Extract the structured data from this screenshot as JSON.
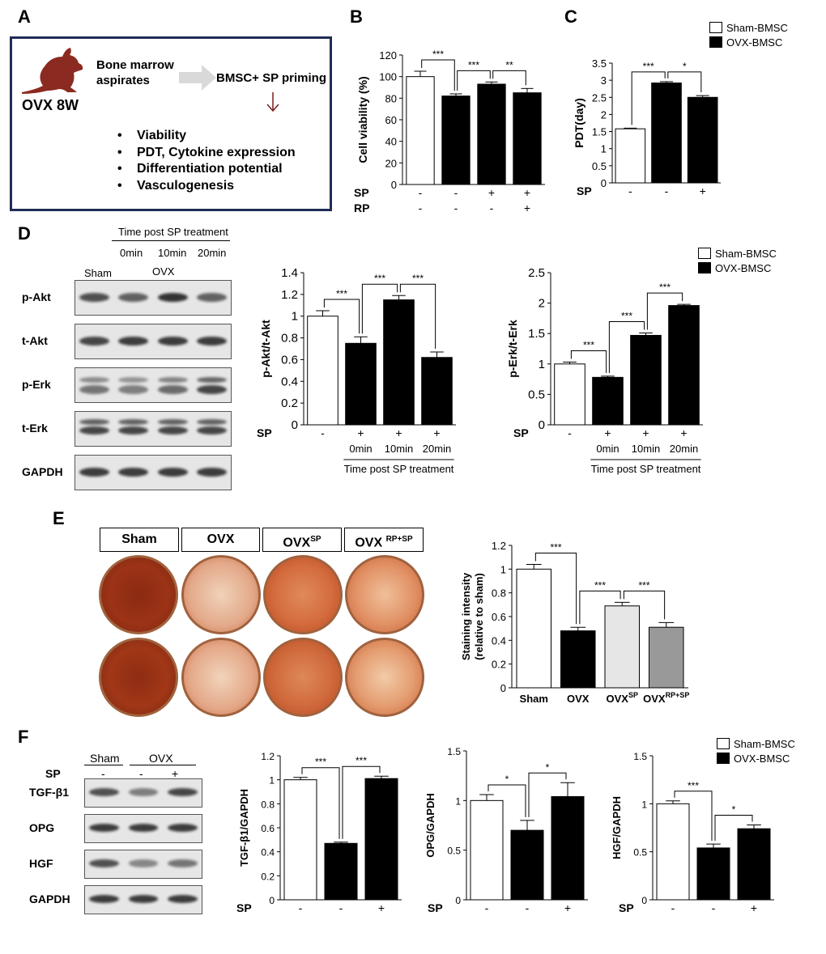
{
  "panels": {
    "A": {
      "label": "A",
      "model": "OVX 8W",
      "step1": "Bone marrow",
      "step1b": "aspirates",
      "step2": "BMSC+ SP priming",
      "bullets": [
        "Viability",
        "PDT, Cytokine expression",
        "Differentiation potential",
        "Vasculogenesis"
      ],
      "bullet_glyph": "•",
      "rat_color": "#8b2a20",
      "arrow_color": "#7a1f1f"
    },
    "B": {
      "label": "B"
    },
    "C": {
      "label": "C"
    },
    "D": {
      "label": "D",
      "blot_header": "Time post SP treatment",
      "times": [
        "0min",
        "10min",
        "20min"
      ],
      "groups": [
        "Sham",
        "OVX"
      ],
      "rows": [
        "p-Akt",
        "t-Akt",
        "p-Erk",
        "t-Erk",
        "GAPDH"
      ]
    },
    "E": {
      "label": "E",
      "conditions": [
        "Sham",
        "OVX",
        "OVX",
        "OVX"
      ],
      "cond_sup": [
        "",
        "",
        "SP",
        "RP+SP"
      ]
    },
    "F": {
      "label": "F",
      "groups": [
        "Sham",
        "OVX"
      ],
      "sp_row_label": "SP",
      "sp_values": [
        "-",
        "-",
        "+"
      ],
      "rows": [
        "TGF-β1",
        "OPG",
        "HGF",
        "GAPDH"
      ]
    }
  },
  "legend": {
    "items": [
      "Sham-BMSC",
      "OVX-BMSC"
    ],
    "colors": [
      "#ffffff",
      "#000000"
    ]
  },
  "chart_data": [
    {
      "id": "B",
      "type": "bar",
      "ylabel": "Cell viability (%)",
      "ylim": [
        0,
        120
      ],
      "yticks": [
        0,
        20,
        40,
        60,
        80,
        100,
        120
      ],
      "values": [
        100,
        82,
        93,
        85
      ],
      "errors": [
        5,
        2,
        2,
        4
      ],
      "colors": [
        "#ffffff",
        "#000000",
        "#000000",
        "#000000"
      ],
      "factor_rows": [
        {
          "name": "SP",
          "values": [
            "-",
            "-",
            "+",
            "+"
          ]
        },
        {
          "name": "RP",
          "values": [
            "-",
            "-",
            "-",
            "+"
          ]
        }
      ],
      "sig": [
        {
          "from": 0,
          "to": 1,
          "label": "***"
        },
        {
          "from": 1,
          "to": 2,
          "label": "***"
        },
        {
          "from": 2,
          "to": 3,
          "label": "**"
        }
      ]
    },
    {
      "id": "C",
      "type": "bar",
      "ylabel": "PDT(day)",
      "ylim": [
        0,
        3.5
      ],
      "yticks": [
        0,
        0.5,
        1,
        1.5,
        2,
        2.5,
        3,
        3.5
      ],
      "values": [
        1.58,
        2.92,
        2.5
      ],
      "errors": [
        0.02,
        0.04,
        0.05
      ],
      "colors": [
        "#ffffff",
        "#000000",
        "#000000"
      ],
      "factor_rows": [
        {
          "name": "SP",
          "values": [
            "-",
            "-",
            "+"
          ]
        }
      ],
      "sig": [
        {
          "from": 0,
          "to": 1,
          "label": "***"
        },
        {
          "from": 1,
          "to": 2,
          "label": "*"
        }
      ]
    },
    {
      "id": "D1",
      "type": "bar",
      "ylabel": "p-Akt/t-Akt",
      "ylim": [
        0,
        1.4
      ],
      "yticks": [
        0,
        0.2,
        0.4,
        0.6,
        0.8,
        1,
        1.2,
        1.4
      ],
      "values": [
        1.0,
        0.75,
        1.15,
        0.62
      ],
      "errors": [
        0.05,
        0.06,
        0.04,
        0.05
      ],
      "colors": [
        "#ffffff",
        "#000000",
        "#000000",
        "#000000"
      ],
      "factor_rows": [
        {
          "name": "SP",
          "values": [
            "-",
            "+",
            "+",
            "+"
          ]
        }
      ],
      "categories": [
        "",
        "0min",
        "10min",
        "20min"
      ],
      "xgroup_label": "Time post SP treatment",
      "sig": [
        {
          "from": 0,
          "to": 1,
          "label": "***"
        },
        {
          "from": 1,
          "to": 2,
          "label": "***"
        },
        {
          "from": 2,
          "to": 3,
          "label": "***"
        }
      ]
    },
    {
      "id": "D2",
      "type": "bar",
      "ylabel": "p-Erk/t-Erk",
      "ylim": [
        0,
        2.5
      ],
      "yticks": [
        0,
        0.5,
        1,
        1.5,
        2,
        2.5
      ],
      "values": [
        1.0,
        0.78,
        1.47,
        1.96
      ],
      "errors": [
        0.03,
        0.02,
        0.04,
        0.02
      ],
      "colors": [
        "#ffffff",
        "#000000",
        "#000000",
        "#000000"
      ],
      "factor_rows": [
        {
          "name": "SP",
          "values": [
            "-",
            "+",
            "+",
            "+"
          ]
        }
      ],
      "categories": [
        "",
        "0min",
        "10min",
        "20min"
      ],
      "xgroup_label": "Time post SP treatment",
      "sig": [
        {
          "from": 0,
          "to": 1,
          "label": "***"
        },
        {
          "from": 1,
          "to": 2,
          "label": "***"
        },
        {
          "from": 2,
          "to": 3,
          "label": "***"
        }
      ]
    },
    {
      "id": "E",
      "type": "bar",
      "ylabel": "Staining intensity",
      "ylabel2": "(relative to sham)",
      "ylim": [
        0,
        1.2
      ],
      "yticks": [
        0,
        0.2,
        0.4,
        0.6,
        0.8,
        1,
        1.2
      ],
      "values": [
        1.0,
        0.48,
        0.69,
        0.51
      ],
      "errors": [
        0.04,
        0.03,
        0.03,
        0.04
      ],
      "colors": [
        "#ffffff",
        "#000000",
        "#e6e6e6",
        "#999999"
      ],
      "categories": [
        "Sham",
        "OVX",
        "OVX",
        "OVX"
      ],
      "cat_sup": [
        "",
        "",
        "SP",
        "RP+SP"
      ],
      "sig": [
        {
          "from": 0,
          "to": 1,
          "label": "***"
        },
        {
          "from": 1,
          "to": 2,
          "label": "***"
        },
        {
          "from": 2,
          "to": 3,
          "label": "***"
        }
      ]
    },
    {
      "id": "F1",
      "type": "bar",
      "ylabel": "TGF-β1/GAPDH",
      "ylim": [
        0,
        1.2
      ],
      "yticks": [
        0,
        0.2,
        0.4,
        0.6,
        0.8,
        1,
        1.2
      ],
      "values": [
        1.0,
        0.47,
        1.01
      ],
      "errors": [
        0.02,
        0.01,
        0.02
      ],
      "colors": [
        "#ffffff",
        "#000000",
        "#000000"
      ],
      "factor_rows": [
        {
          "name": "SP",
          "values": [
            "-",
            "-",
            "+"
          ]
        }
      ],
      "sig": [
        {
          "from": 0,
          "to": 1,
          "label": "***"
        },
        {
          "from": 1,
          "to": 2,
          "label": "***"
        }
      ]
    },
    {
      "id": "F2",
      "type": "bar",
      "ylabel": "OPG/GAPDH",
      "ylim": [
        0,
        1.5
      ],
      "yticks": [
        0,
        0.5,
        1,
        1.5
      ],
      "values": [
        1.0,
        0.7,
        1.04
      ],
      "errors": [
        0.06,
        0.1,
        0.14
      ],
      "colors": [
        "#ffffff",
        "#000000",
        "#000000"
      ],
      "factor_rows": [
        {
          "name": "SP",
          "values": [
            "-",
            "-",
            "+"
          ]
        }
      ],
      "sig": [
        {
          "from": 0,
          "to": 1,
          "label": "*"
        },
        {
          "from": 1,
          "to": 2,
          "label": "*"
        }
      ]
    },
    {
      "id": "F3",
      "type": "bar",
      "ylabel": "HGF/GAPDH",
      "ylim": [
        0,
        1.5
      ],
      "yticks": [
        0,
        0.5,
        1,
        1.5
      ],
      "values": [
        1.0,
        0.54,
        0.74
      ],
      "errors": [
        0.03,
        0.04,
        0.04
      ],
      "colors": [
        "#ffffff",
        "#000000",
        "#000000"
      ],
      "factor_rows": [
        {
          "name": "SP",
          "values": [
            "-",
            "-",
            "+"
          ]
        }
      ],
      "sig": [
        {
          "from": 0,
          "to": 1,
          "label": "***"
        },
        {
          "from": 1,
          "to": 2,
          "label": "*"
        }
      ]
    }
  ]
}
